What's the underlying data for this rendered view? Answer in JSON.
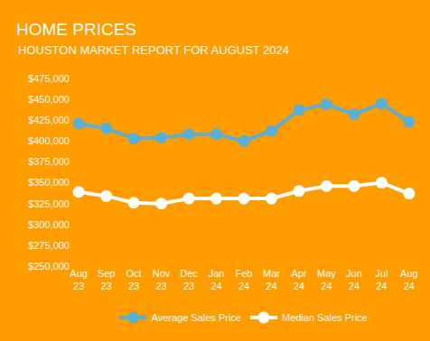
{
  "chart_data": {
    "type": "line",
    "title": "HOME PRICES",
    "subtitle": "HOUSTON MARKET REPORT FOR AUGUST 2024",
    "categories": [
      "Aug 23",
      "Sep 23",
      "Oct 23",
      "Nov 23",
      "Dec 23",
      "Jan 24",
      "Feb 24",
      "Mar 24",
      "Apr 24",
      "May 24",
      "Jun 24",
      "Jul 24",
      "Aug 24"
    ],
    "series": [
      {
        "name": "Average Sales Price",
        "color": "#5aafd6",
        "marker": "circle",
        "values": [
          421000,
          415000,
          403000,
          404000,
          408000,
          408000,
          400000,
          412000,
          437000,
          444000,
          432000,
          445000,
          423000
        ]
      },
      {
        "name": "Median Sales Price",
        "color": "#ffffff",
        "marker": "circle",
        "values": [
          339000,
          334000,
          326000,
          325000,
          331000,
          331000,
          331000,
          331000,
          340000,
          346000,
          346000,
          350000,
          337000
        ]
      }
    ],
    "ylim": [
      250000,
      475000
    ],
    "yticks": [
      {
        "value": 250000,
        "label": "$250,000"
      },
      {
        "value": 275000,
        "label": "$275,000"
      },
      {
        "value": 300000,
        "label": "$300,000"
      },
      {
        "value": 325000,
        "label": "$325,000"
      },
      {
        "value": 350000,
        "label": "$350,000"
      },
      {
        "value": 375000,
        "label": "$375,000"
      },
      {
        "value": 400000,
        "label": "$400,000"
      },
      {
        "value": 425000,
        "label": "$425,000"
      },
      {
        "value": 450000,
        "label": "$450,000"
      },
      {
        "value": 475000,
        "label": "$475,000"
      }
    ],
    "grid": false,
    "legend": "bottom"
  }
}
